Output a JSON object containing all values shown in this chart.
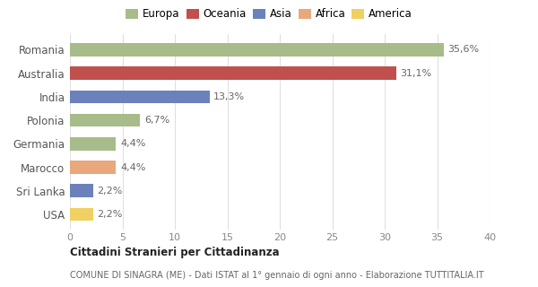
{
  "categories": [
    "Romania",
    "Australia",
    "India",
    "Polonia",
    "Germania",
    "Marocco",
    "Sri Lanka",
    "USA"
  ],
  "values": [
    35.6,
    31.1,
    13.3,
    6.7,
    4.4,
    4.4,
    2.2,
    2.2
  ],
  "labels": [
    "35,6%",
    "31,1%",
    "13,3%",
    "6,7%",
    "4,4%",
    "4,4%",
    "2,2%",
    "2,2%"
  ],
  "colors": [
    "#a8bb8a",
    "#c0504d",
    "#6b81bb",
    "#a8bb8a",
    "#a8bb8a",
    "#e8a87c",
    "#6b81bb",
    "#f0d060"
  ],
  "legend": [
    {
      "label": "Europa",
      "color": "#a8bb8a"
    },
    {
      "label": "Oceania",
      "color": "#c0504d"
    },
    {
      "label": "Asia",
      "color": "#6b81bb"
    },
    {
      "label": "Africa",
      "color": "#e8a87c"
    },
    {
      "label": "America",
      "color": "#f0d060"
    }
  ],
  "xlim": [
    0,
    40
  ],
  "xticks": [
    0,
    5,
    10,
    15,
    20,
    25,
    30,
    35,
    40
  ],
  "title_bold": "Cittadini Stranieri per Cittadinanza",
  "subtitle": "COMUNE DI SINAGRA (ME) - Dati ISTAT al 1° gennaio di ogni anno - Elaborazione TUTTITALIA.IT",
  "background_color": "#ffffff",
  "grid_color": "#e0e0e0"
}
